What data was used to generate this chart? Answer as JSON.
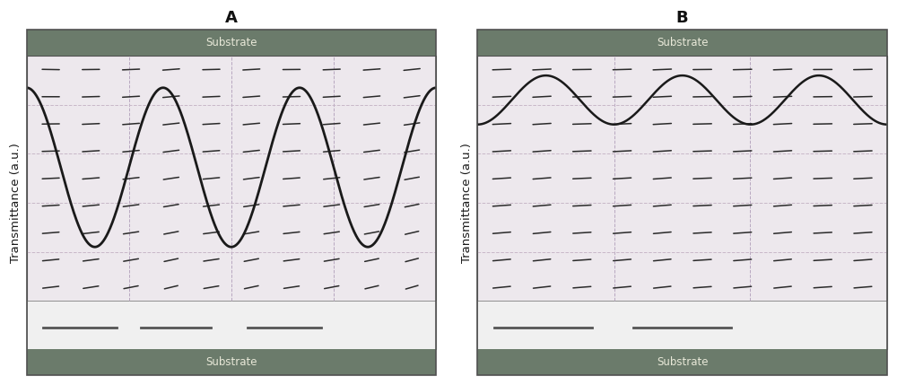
{
  "title_A": "A",
  "title_B": "B",
  "ylabel": "Transmittance (a.u.)",
  "substrate_label": "Substrate",
  "substrate_bg": "#6b7b6b",
  "substrate_text_color": "#e8e8d8",
  "panel_bg": "#ede8ed",
  "grid_color_v": "#b8a8c0",
  "grid_color_h": "#c8b8c8",
  "main_border_color": "#505050",
  "curve_color": "#1a1a1a",
  "curve_lw_A": 2.0,
  "curve_lw_B": 1.8,
  "dash_color": "#2a2a2a",
  "figsize": [
    10.0,
    4.29
  ],
  "dpi": 100,
  "n_rows_dashes_A": 9,
  "n_cols_dashes_A": 10,
  "n_rows_dashes_B": 9,
  "n_cols_dashes_B": 10
}
